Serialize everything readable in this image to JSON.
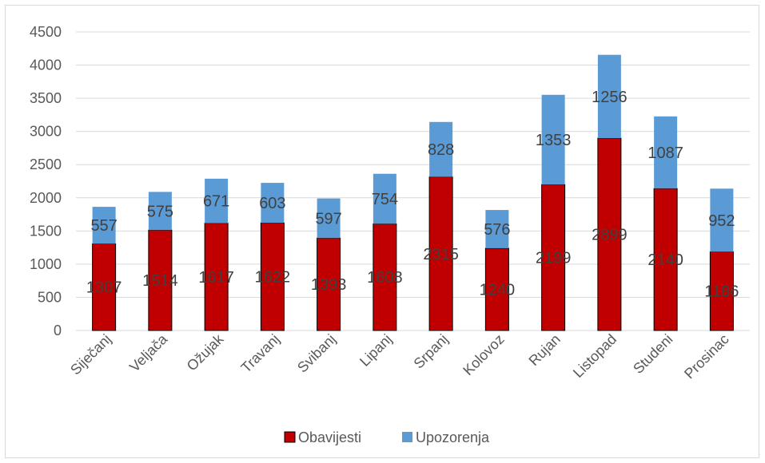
{
  "chart_data": {
    "type": "bar",
    "stacked": true,
    "categories": [
      "Siječanj",
      "Veljača",
      "Ožujak",
      "Travanj",
      "Svibanj",
      "Lipanj",
      "Srpanj",
      "Kolovoz",
      "Rujan",
      "Listopad",
      "Studeni",
      "Prosinac"
    ],
    "series": [
      {
        "name": "Obavijesti",
        "color": "#c00000",
        "values": [
          1307,
          1514,
          1617,
          1622,
          1393,
          1608,
          2315,
          1240,
          2199,
          2899,
          2140,
          1186
        ]
      },
      {
        "name": "Upozorenja",
        "color": "#5b9bd5",
        "values": [
          557,
          575,
          671,
          603,
          597,
          754,
          828,
          576,
          1353,
          1256,
          1087,
          952
        ]
      }
    ],
    "ylim": [
      0,
      4500
    ],
    "yticks": [
      0,
      500,
      1000,
      1500,
      2000,
      2500,
      3000,
      3500,
      4000,
      4500
    ],
    "grid": true,
    "legend": "bottom"
  }
}
